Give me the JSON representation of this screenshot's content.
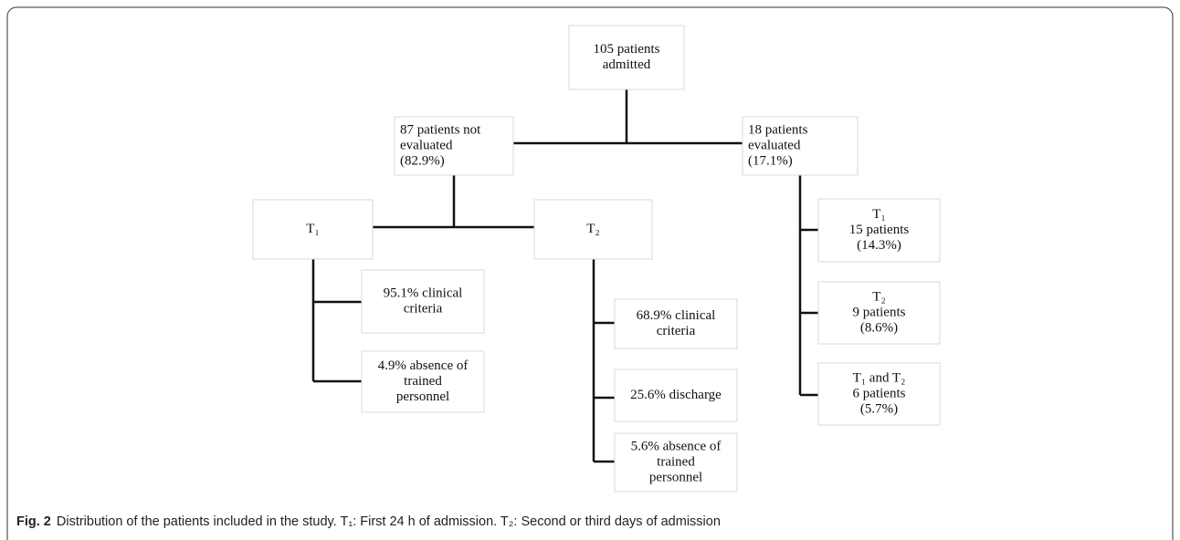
{
  "nodes": [
    {
      "lines": [
        "105 patients",
        "admitted"
      ]
    },
    {
      "lines": [
        "87 patients not",
        "evaluated",
        "(82.9%)"
      ]
    },
    {
      "lines": [
        "18 patients",
        "evaluated",
        "(17.1%)"
      ]
    },
    {
      "lines": [
        "T₁"
      ]
    },
    {
      "lines": [
        "T₂"
      ]
    },
    {
      "lines": [
        "95.1% clinical",
        "criteria"
      ]
    },
    {
      "lines": [
        "4.9% absence of",
        "trained",
        "personnel"
      ]
    },
    {
      "lines": [
        "68.9% clinical",
        "criteria"
      ]
    },
    {
      "lines": [
        "25.6% discharge"
      ]
    },
    {
      "lines": [
        "5.6% absence of",
        "trained",
        "personnel"
      ]
    },
    {
      "lines": [
        "T₁",
        "15 patients",
        "(14.3%)"
      ]
    },
    {
      "lines": [
        "T₂",
        "9 patients",
        "(8.6%)"
      ]
    },
    {
      "lines": [
        "T₁ and T₂",
        "6 patients",
        "(5.7%)"
      ]
    }
  ],
  "caption": {
    "label": "Fig. 2",
    "text": "Distribution of the patients included in the study. T₁: First 24 h of admission. T₂: Second or third days of admission"
  }
}
